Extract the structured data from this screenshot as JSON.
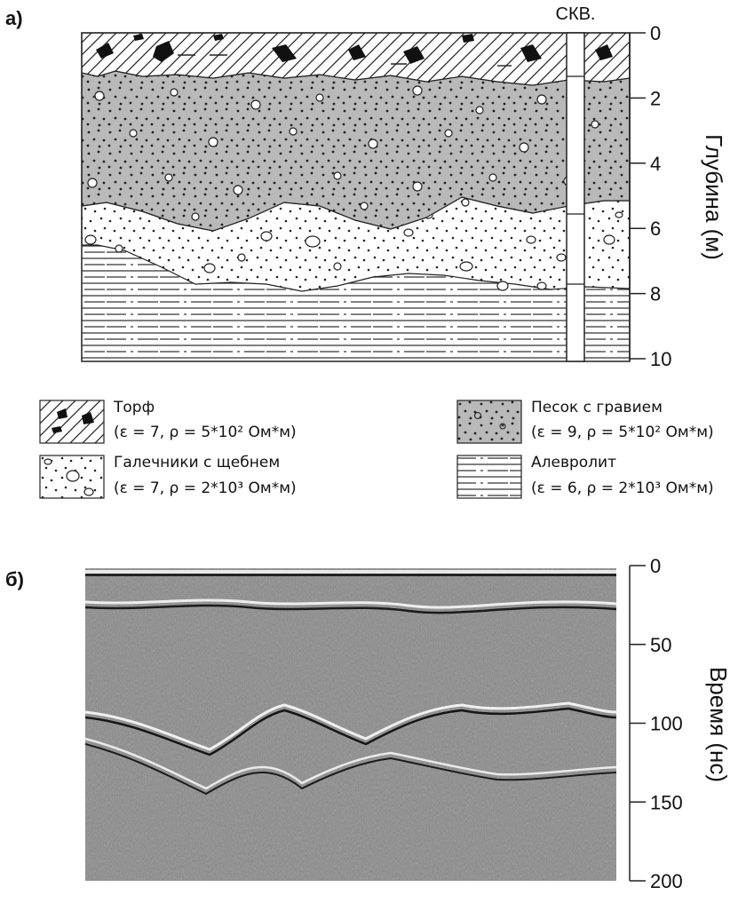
{
  "panel_a": {
    "label": "а)",
    "borehole_label": "СКВ.",
    "axis_title": "Глубина (м)",
    "ticks": [
      "0",
      "2",
      "4",
      "6",
      "8",
      "10"
    ],
    "depth_range_m": [
      0,
      10
    ]
  },
  "legend": [
    {
      "name": "Торф",
      "params": "(ε = 7, ρ = 5*10² Ом*м)"
    },
    {
      "name": "Галечники с щебнем",
      "params": "(ε = 7, ρ = 2*10³ Ом*м)"
    },
    {
      "name": "Песок с гравием",
      "params": "(ε = 9, ρ = 5*10² Ом*м)"
    },
    {
      "name": "Алевролит",
      "params": "(ε = 6, ρ = 2*10³ Ом*м)"
    }
  ],
  "panel_b": {
    "label": "б)",
    "axis_title": "Время (нс)",
    "ticks": [
      "0",
      "50",
      "100",
      "150",
      "200"
    ],
    "time_range_ns": [
      0,
      200
    ]
  },
  "colors": {
    "sand_fill": "#b9b9b9",
    "radargram_bg": "#8c8c8c",
    "line": "#111111"
  }
}
